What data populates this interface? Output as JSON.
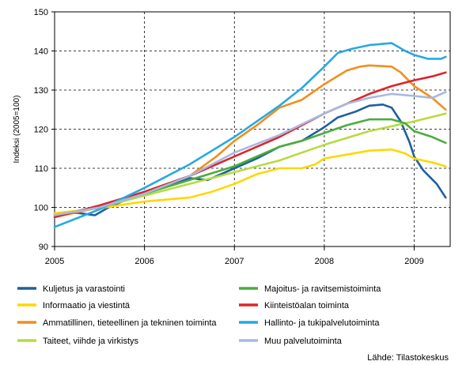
{
  "chart_data": {
    "type": "line",
    "title": "",
    "xlabel": "",
    "ylabel": "Indeksi (2005=100)",
    "ylim": [
      90,
      150
    ],
    "y_ticks": [
      90,
      100,
      110,
      120,
      130,
      140,
      150
    ],
    "xlim": [
      2005,
      2009.4
    ],
    "x_ticks": [
      2005,
      2006,
      2007,
      2008,
      2009
    ],
    "x_tick_labels": [
      "2005",
      "2006",
      "2007",
      "2008",
      "2009"
    ],
    "grid": true,
    "legend_position": "bottom",
    "source": "Lähde: Tilastokeskus",
    "series": [
      {
        "name": "Kuljetus ja varastointi",
        "color": "#1f5fa0",
        "x": [
          2005.0,
          2005.25,
          2005.45,
          2005.6,
          2005.8,
          2006.0,
          2006.25,
          2006.5,
          2006.7,
          2007.0,
          2007.25,
          2007.5,
          2007.75,
          2008.0,
          2008.15,
          2008.35,
          2008.5,
          2008.65,
          2008.75,
          2008.85,
          2008.95,
          2009.0,
          2009.1,
          2009.25,
          2009.35
        ],
        "y": [
          98.3,
          98.6,
          98.0,
          100.0,
          102.0,
          104.0,
          105.5,
          107.5,
          107.0,
          110.0,
          112.5,
          115.5,
          117.0,
          120.5,
          123.0,
          124.5,
          126.0,
          126.3,
          125.5,
          122.0,
          116.5,
          113.0,
          109.5,
          106.0,
          102.5
        ]
      },
      {
        "name": "Informaatio ja viestintä",
        "color": "#ffd700",
        "x": [
          2005.0,
          2005.5,
          2006.0,
          2006.25,
          2006.5,
          2006.75,
          2007.0,
          2007.25,
          2007.5,
          2007.75,
          2007.9,
          2008.0,
          2008.25,
          2008.5,
          2008.75,
          2008.9,
          2009.0,
          2009.2,
          2009.35
        ],
        "y": [
          98.5,
          99.8,
          101.5,
          102.0,
          102.5,
          104.0,
          106.0,
          108.5,
          110.0,
          110.0,
          111.0,
          112.5,
          113.5,
          114.5,
          114.8,
          113.8,
          112.5,
          111.5,
          110.5
        ]
      },
      {
        "name": "Ammatillinen, tieteellinen ja tekninen toiminta",
        "color": "#f28e1c",
        "x": [
          2005.0,
          2005.5,
          2006.0,
          2006.5,
          2006.8,
          2007.0,
          2007.25,
          2007.5,
          2007.75,
          2008.0,
          2008.25,
          2008.4,
          2008.5,
          2008.75,
          2008.85,
          2009.0,
          2009.2,
          2009.35
        ],
        "y": [
          97.5,
          100.0,
          104.0,
          108.0,
          113.0,
          117.0,
          121.0,
          125.5,
          127.5,
          131.5,
          135.0,
          136.0,
          136.3,
          136.0,
          134.5,
          131.0,
          128.0,
          125.0
        ]
      },
      {
        "name": "Taiteet, viihde ja virkistys",
        "color": "#b5dc40",
        "x": [
          2005.0,
          2005.5,
          2006.0,
          2006.5,
          2007.0,
          2007.5,
          2008.0,
          2008.5,
          2009.0,
          2009.35
        ],
        "y": [
          98.0,
          100.0,
          103.0,
          106.0,
          109.0,
          112.0,
          116.0,
          119.5,
          122.0,
          124.0
        ]
      },
      {
        "name": "Majoitus- ja ravitsemistoiminta",
        "color": "#4aae3a",
        "x": [
          2005.0,
          2005.5,
          2006.0,
          2006.5,
          2007.0,
          2007.25,
          2007.5,
          2007.75,
          2008.0,
          2008.25,
          2008.5,
          2008.75,
          2008.9,
          2009.0,
          2009.2,
          2009.35
        ],
        "y": [
          98.0,
          100.0,
          103.5,
          107.0,
          110.5,
          113.0,
          115.5,
          117.0,
          119.0,
          121.0,
          122.5,
          122.5,
          121.5,
          119.5,
          118.0,
          116.5
        ]
      },
      {
        "name": "Kiinteistöalan toiminta",
        "color": "#d9262b",
        "x": [
          2005.0,
          2005.5,
          2006.0,
          2006.5,
          2007.0,
          2007.5,
          2008.0,
          2008.25,
          2008.5,
          2008.75,
          2009.0,
          2009.2,
          2009.35
        ],
        "y": [
          97.5,
          100.5,
          104.0,
          108.0,
          113.0,
          118.0,
          124.0,
          126.5,
          129.0,
          131.0,
          132.5,
          133.5,
          134.5
        ]
      },
      {
        "name": "Hallinto- ja tukipalvelutoiminta",
        "color": "#27a9e1",
        "x": [
          2005.0,
          2005.5,
          2006.0,
          2006.5,
          2007.0,
          2007.25,
          2007.5,
          2007.75,
          2008.0,
          2008.15,
          2008.3,
          2008.5,
          2008.75,
          2008.9,
          2009.0,
          2009.15,
          2009.3,
          2009.35
        ],
        "y": [
          95.0,
          99.5,
          105.0,
          111.0,
          118.0,
          122.0,
          126.0,
          130.5,
          136.0,
          139.5,
          140.5,
          141.5,
          142.0,
          140.0,
          139.0,
          138.0,
          138.0,
          138.5
        ]
      },
      {
        "name": "Muu palvelutoiminta",
        "color": "#a8b8e0",
        "x": [
          2005.0,
          2005.5,
          2006.0,
          2006.5,
          2007.0,
          2007.5,
          2008.0,
          2008.25,
          2008.5,
          2008.75,
          2009.0,
          2009.2,
          2009.35
        ],
        "y": [
          98.0,
          100.0,
          103.5,
          108.0,
          114.0,
          118.5,
          124.0,
          126.5,
          128.0,
          129.0,
          128.5,
          128.0,
          129.5
        ]
      }
    ]
  }
}
